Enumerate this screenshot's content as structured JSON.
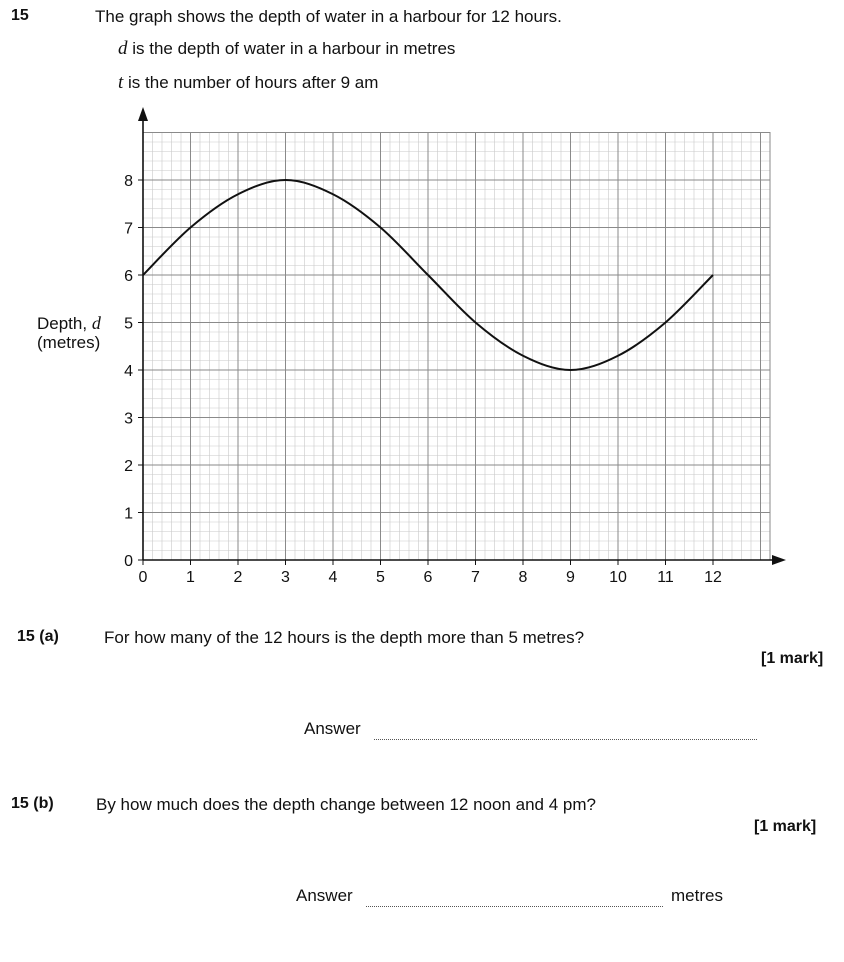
{
  "question": {
    "number": "15",
    "stem": "The graph shows the depth of water in a harbour for 12 hours.",
    "def_d_var": "d",
    "def_d_text": "is the depth of water in a harbour in metres",
    "def_t_var": "t",
    "def_t_text": "is the number of hours after 9 am"
  },
  "chart_data": {
    "type": "line",
    "ylabel_text": "Depth,",
    "ylabel_var": "d",
    "ylabel_unit": "(metres)",
    "xlim": [
      0,
      13.2
    ],
    "ylim": [
      0,
      9
    ],
    "x_ticks": [
      "0",
      "1",
      "2",
      "3",
      "4",
      "5",
      "6",
      "7",
      "8",
      "9",
      "10",
      "11",
      "12"
    ],
    "y_ticks": [
      "0",
      "1",
      "2",
      "3",
      "4",
      "5",
      "6",
      "7",
      "8"
    ],
    "grid": true,
    "series": [
      {
        "x": [
          0,
          1,
          2,
          3,
          4,
          5,
          6,
          7,
          8,
          9,
          10,
          11,
          12
        ],
        "y": [
          6,
          7,
          7.7,
          8,
          7.7,
          7,
          6,
          5,
          4.3,
          4,
          4.3,
          5,
          6
        ]
      }
    ]
  },
  "part_a": {
    "label": "15 (a)",
    "question": "For how many of the 12 hours is the depth more than 5 metres?",
    "marks": "[1 mark]",
    "answer_label": "Answer"
  },
  "part_b": {
    "label": "15 (b)",
    "question": "By how much does the depth change between 12 noon and 4 pm?",
    "marks": "[1 mark]",
    "answer_label": "Answer",
    "answer_unit": "metres"
  }
}
